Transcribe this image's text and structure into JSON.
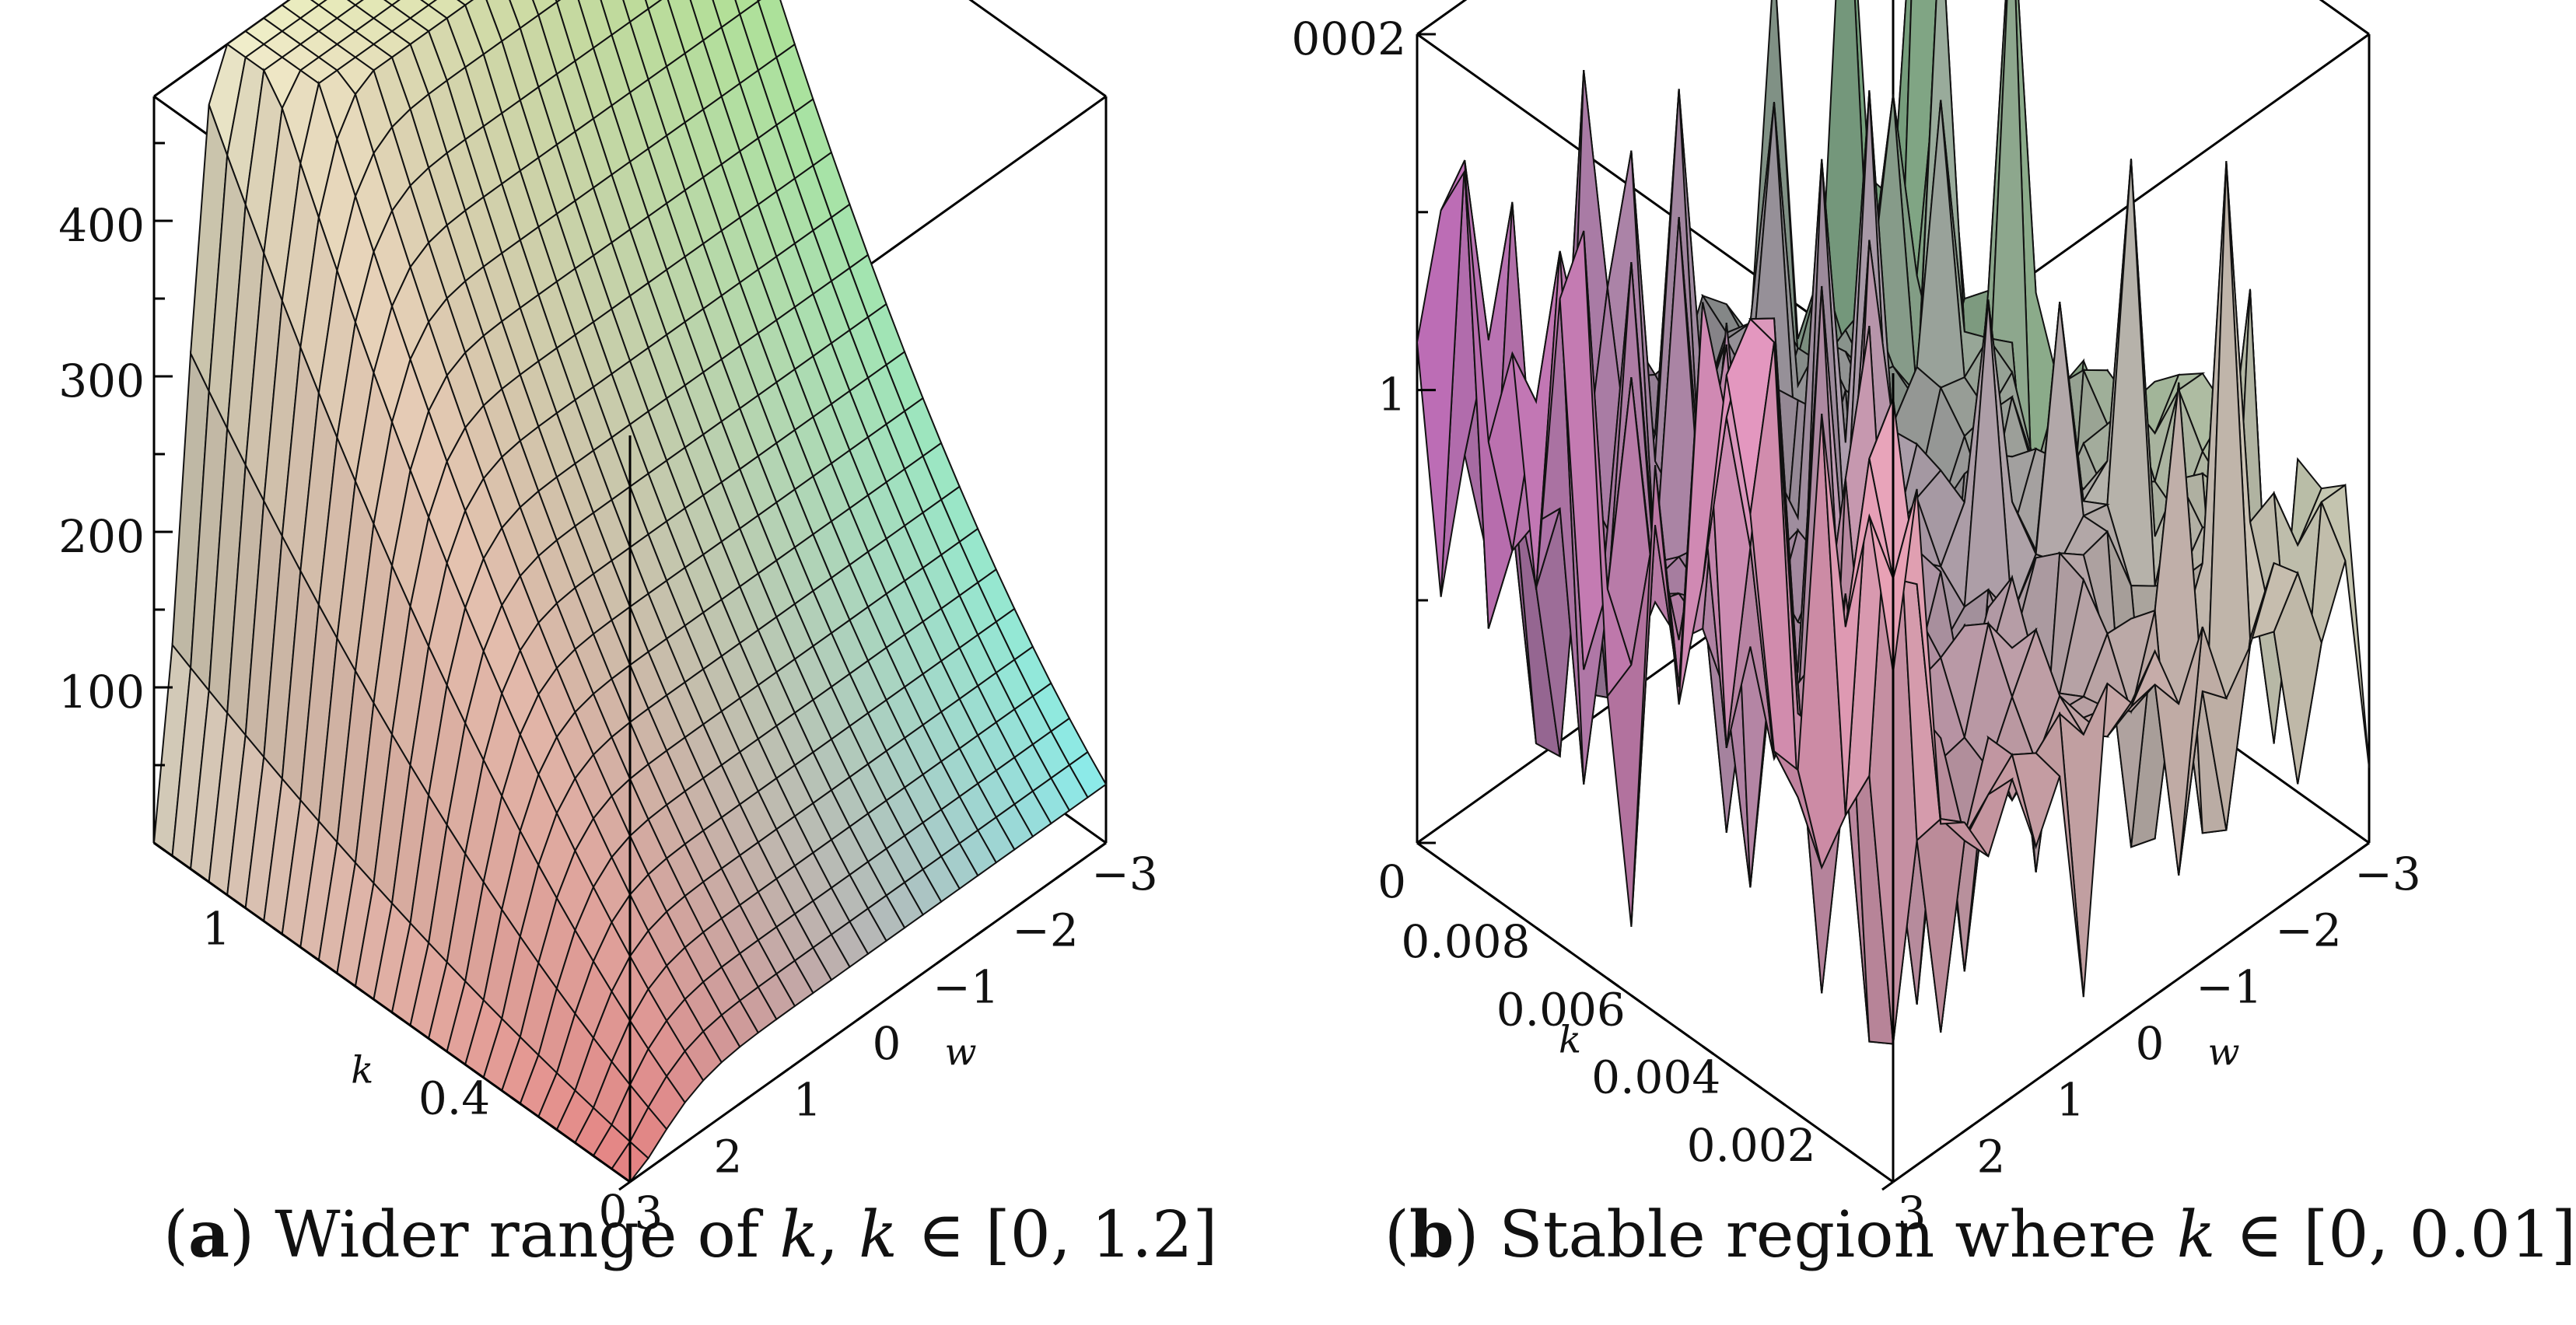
{
  "chart_data": [
    {
      "type": "surface",
      "id": "a",
      "xlabel": "k",
      "ylabel": "w",
      "xlim": [
        0,
        1.2
      ],
      "ylim": [
        -3,
        3
      ],
      "zlim": [
        0,
        480
      ],
      "k_ticks": [
        "0",
        "0.4",
        "1"
      ],
      "w_ticks": [
        "−3",
        "−2",
        "−1",
        "0",
        "1",
        "2",
        "3"
      ],
      "z_ticks": [
        "100",
        "200",
        "300",
        "400"
      ],
      "caption": {
        "prefix": "(",
        "letter": "a",
        "suffix": ") Wider range of ",
        "var1": "k",
        "mid": ", ",
        "var2": "k",
        "rest": " ∈ [0, 1.2]"
      }
    },
    {
      "type": "surface",
      "id": "b",
      "xlabel": "k",
      "ylabel": "w",
      "xlim": [
        0,
        0.01
      ],
      "ylim": [
        -3,
        3
      ],
      "z_ticks": [
        "0002",
        "1",
        "0"
      ],
      "k_ticks": [
        "0",
        "0.002",
        "0.004",
        "0.006",
        "0.008"
      ],
      "w_ticks": [
        "−3",
        "−2",
        "−1",
        "0",
        "1",
        "2",
        "3"
      ],
      "caption": {
        "prefix": "(",
        "letter": "b",
        "suffix": ") Stable region where ",
        "var1": "k",
        "rest": " ∈ [0, 0.01]"
      }
    }
  ]
}
